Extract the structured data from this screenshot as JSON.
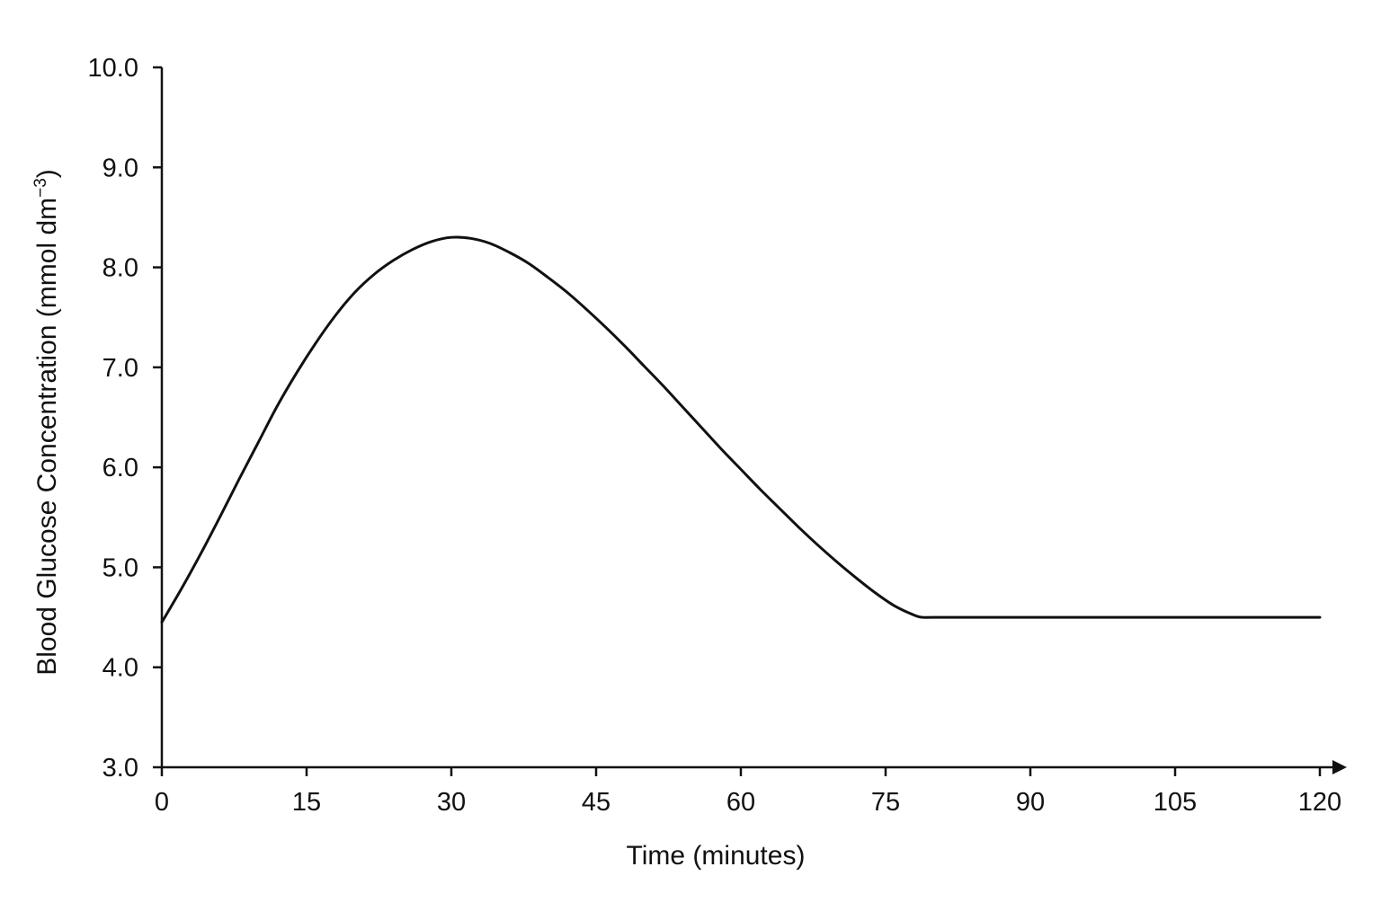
{
  "chart_data": {
    "type": "line",
    "title": "",
    "xlabel": "Time (minutes)",
    "ylabel": {
      "text": "Blood Glucose Concentration (mmol dm",
      "superscript": "−3",
      "closing": ")"
    },
    "xlim": [
      0,
      120
    ],
    "ylim": [
      3.0,
      10.0
    ],
    "x_ticks": [
      "0",
      "15",
      "30",
      "45",
      "60",
      "75",
      "90",
      "105",
      "120"
    ],
    "y_ticks": [
      "3.0",
      "4.0",
      "5.0",
      "6.0",
      "7.0",
      "8.0",
      "9.0",
      "10.0"
    ],
    "grid": false,
    "legend": "none",
    "series": [
      {
        "x": [
          0,
          2,
          4,
          6,
          8,
          10,
          12,
          14,
          16,
          18,
          20,
          22,
          24,
          26,
          28,
          30,
          32,
          34,
          36,
          38,
          40,
          42,
          44,
          46,
          48,
          50,
          52,
          54,
          56,
          58,
          60,
          62,
          64,
          66,
          68,
          70,
          72,
          74,
          76,
          78,
          78.8,
          80,
          85,
          90,
          95,
          100,
          105,
          110,
          115,
          120
        ],
        "y": [
          4.45,
          4.78,
          5.13,
          5.5,
          5.88,
          6.25,
          6.62,
          6.95,
          7.25,
          7.52,
          7.75,
          7.93,
          8.07,
          8.18,
          8.26,
          8.3,
          8.29,
          8.24,
          8.15,
          8.04,
          7.9,
          7.75,
          7.58,
          7.4,
          7.21,
          7.01,
          6.81,
          6.6,
          6.39,
          6.18,
          5.98,
          5.78,
          5.59,
          5.4,
          5.22,
          5.05,
          4.89,
          4.74,
          4.61,
          4.52,
          4.5,
          4.5,
          4.5,
          4.5,
          4.5,
          4.5,
          4.5,
          4.5,
          4.5,
          4.5
        ]
      }
    ]
  }
}
